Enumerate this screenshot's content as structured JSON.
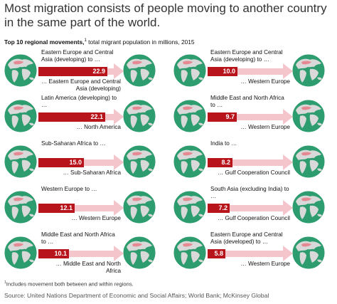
{
  "header": {
    "title": "Most migration consists of people moving to another country in the same part of the world.",
    "subtitle_bold": "Top 10 regional movements,",
    "subtitle_sup": "1",
    "subtitle_rest": " total migrant population in millions, 2015"
  },
  "colors": {
    "bar": "#b8141c",
    "track": "#f4c6cc",
    "ocean": "#2d9c6e",
    "land": "#d9d9d9",
    "highlight": "#e58a93"
  },
  "chart_data": {
    "type": "bar",
    "title": "Top 10 regional movements, total migrant population in millions, 2015",
    "unit": "millions",
    "items": [
      {
        "from": "Eastern Europe and Central Asia (developing) to …",
        "to": "… Eastern Europe and Central Asia (developing)",
        "value": 22.9,
        "label": "22.9"
      },
      {
        "from": "Latin America (developing) to …",
        "to": "… North America",
        "value": 22.1,
        "label": "22.1"
      },
      {
        "from": "Sub-Saharan Africa to …",
        "to": "… Sub-Saharan Africa",
        "value": 15.0,
        "label": "15.0"
      },
      {
        "from": "Western Europe to …",
        "to": "… Western Europe",
        "value": 12.1,
        "label": "12.1"
      },
      {
        "from": "Middle East and North Africa to …",
        "to": "… Middle East and North Africa",
        "value": 10.1,
        "label": "10.1"
      },
      {
        "from": "Eastern Europe and Central Asia (developing) to …",
        "to": "… Western Europe",
        "value": 10.0,
        "label": "10.0"
      },
      {
        "from": "Middle East and North Africa to …",
        "to": "… Western Europe",
        "value": 9.7,
        "label": "9.7"
      },
      {
        "from": "India to …",
        "to": "… Gulf Cooperation Council",
        "value": 8.2,
        "label": "8.2"
      },
      {
        "from": "South Asia (excluding India) to …",
        "to": "… Gulf Cooperation Council",
        "value": 7.2,
        "label": "7.2"
      },
      {
        "from": "Eastern Europe and Central Asia (developed) to …",
        "to": "… Western Europe",
        "value": 5.8,
        "label": "5.8"
      }
    ]
  },
  "footnote": {
    "sup": "1",
    "text": "Includes movement both between and within regions."
  },
  "source": "Source: United Nations Department of Economic and Social Affairs; World Bank; McKinsey Global"
}
